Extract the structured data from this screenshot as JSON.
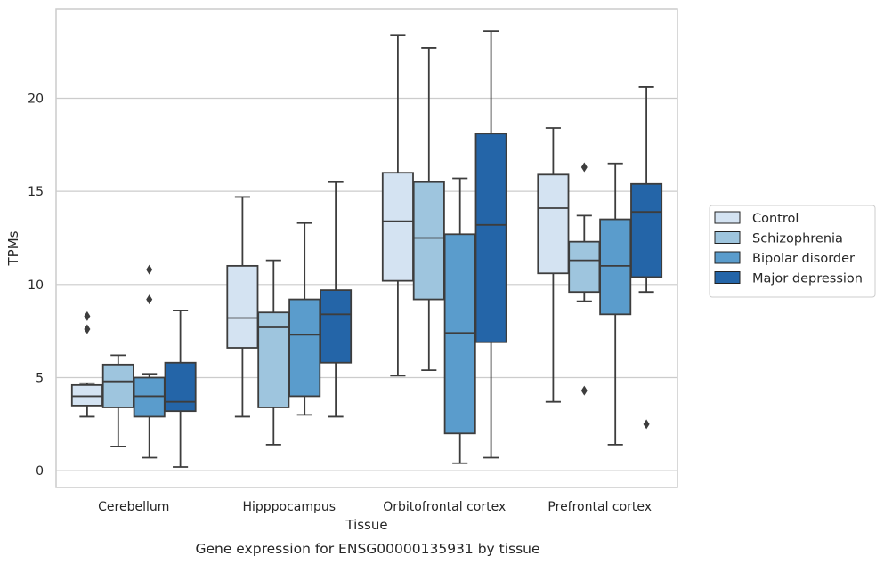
{
  "chart_data": {
    "type": "box",
    "title": "",
    "caption": "Gene expression for ENSG00000135931 by tissue",
    "xlabel": "Tissue",
    "ylabel": "TPMs",
    "ylim": [
      -0.9,
      24.8
    ],
    "yticks": [
      0,
      5,
      10,
      15,
      20
    ],
    "grid": "horizontal",
    "legend_position": "right",
    "categories": [
      "Cerebellum",
      "Hipppocampus",
      "Orbitofrontal cortex",
      "Prefrontal cortex"
    ],
    "series": [
      {
        "name": "Control",
        "color": "#d4e3f2",
        "boxes": [
          {
            "whislo": 2.9,
            "q1": 3.5,
            "med": 4.0,
            "q3": 4.6,
            "whishi": 4.7,
            "fliers": [
              8.3,
              7.6
            ]
          },
          {
            "whislo": 2.9,
            "q1": 6.6,
            "med": 8.2,
            "q3": 11.0,
            "whishi": 14.7,
            "fliers": []
          },
          {
            "whislo": 5.1,
            "q1": 10.2,
            "med": 13.4,
            "q3": 16.0,
            "whishi": 23.4,
            "fliers": []
          },
          {
            "whislo": 3.7,
            "q1": 10.6,
            "med": 14.1,
            "q3": 15.9,
            "whishi": 18.4,
            "fliers": []
          }
        ]
      },
      {
        "name": "Schizophrenia",
        "color": "#9ec5de",
        "boxes": [
          {
            "whislo": 1.3,
            "q1": 3.4,
            "med": 4.8,
            "q3": 5.7,
            "whishi": 6.2,
            "fliers": []
          },
          {
            "whislo": 1.4,
            "q1": 3.4,
            "med": 7.7,
            "q3": 8.5,
            "whishi": 11.3,
            "fliers": []
          },
          {
            "whislo": 5.4,
            "q1": 9.2,
            "med": 12.5,
            "q3": 15.5,
            "whishi": 22.7,
            "fliers": []
          },
          {
            "whislo": 9.1,
            "q1": 9.6,
            "med": 11.3,
            "q3": 12.3,
            "whishi": 13.7,
            "fliers": [
              16.3,
              4.3
            ]
          }
        ]
      },
      {
        "name": "Bipolar disorder",
        "color": "#5a9ccc",
        "boxes": [
          {
            "whislo": 0.7,
            "q1": 2.9,
            "med": 4.0,
            "q3": 5.0,
            "whishi": 5.2,
            "fliers": [
              10.8,
              9.2
            ]
          },
          {
            "whislo": 3.0,
            "q1": 4.0,
            "med": 7.3,
            "q3": 9.2,
            "whishi": 13.3,
            "fliers": []
          },
          {
            "whislo": 0.4,
            "q1": 2.0,
            "med": 7.4,
            "q3": 12.7,
            "whishi": 15.7,
            "fliers": []
          },
          {
            "whislo": 1.4,
            "q1": 8.4,
            "med": 11.0,
            "q3": 13.5,
            "whishi": 16.5,
            "fliers": []
          }
        ]
      },
      {
        "name": "Major depression",
        "color": "#2465a8",
        "boxes": [
          {
            "whislo": 0.2,
            "q1": 3.2,
            "med": 3.7,
            "q3": 5.8,
            "whishi": 8.6,
            "fliers": []
          },
          {
            "whislo": 2.9,
            "q1": 5.8,
            "med": 8.4,
            "q3": 9.7,
            "whishi": 15.5,
            "fliers": []
          },
          {
            "whislo": 0.7,
            "q1": 6.9,
            "med": 13.2,
            "q3": 18.1,
            "whishi": 23.6,
            "fliers": []
          },
          {
            "whislo": 9.6,
            "q1": 10.4,
            "med": 13.9,
            "q3": 15.4,
            "whishi": 20.6,
            "fliers": [
              2.5
            ]
          }
        ]
      }
    ]
  }
}
